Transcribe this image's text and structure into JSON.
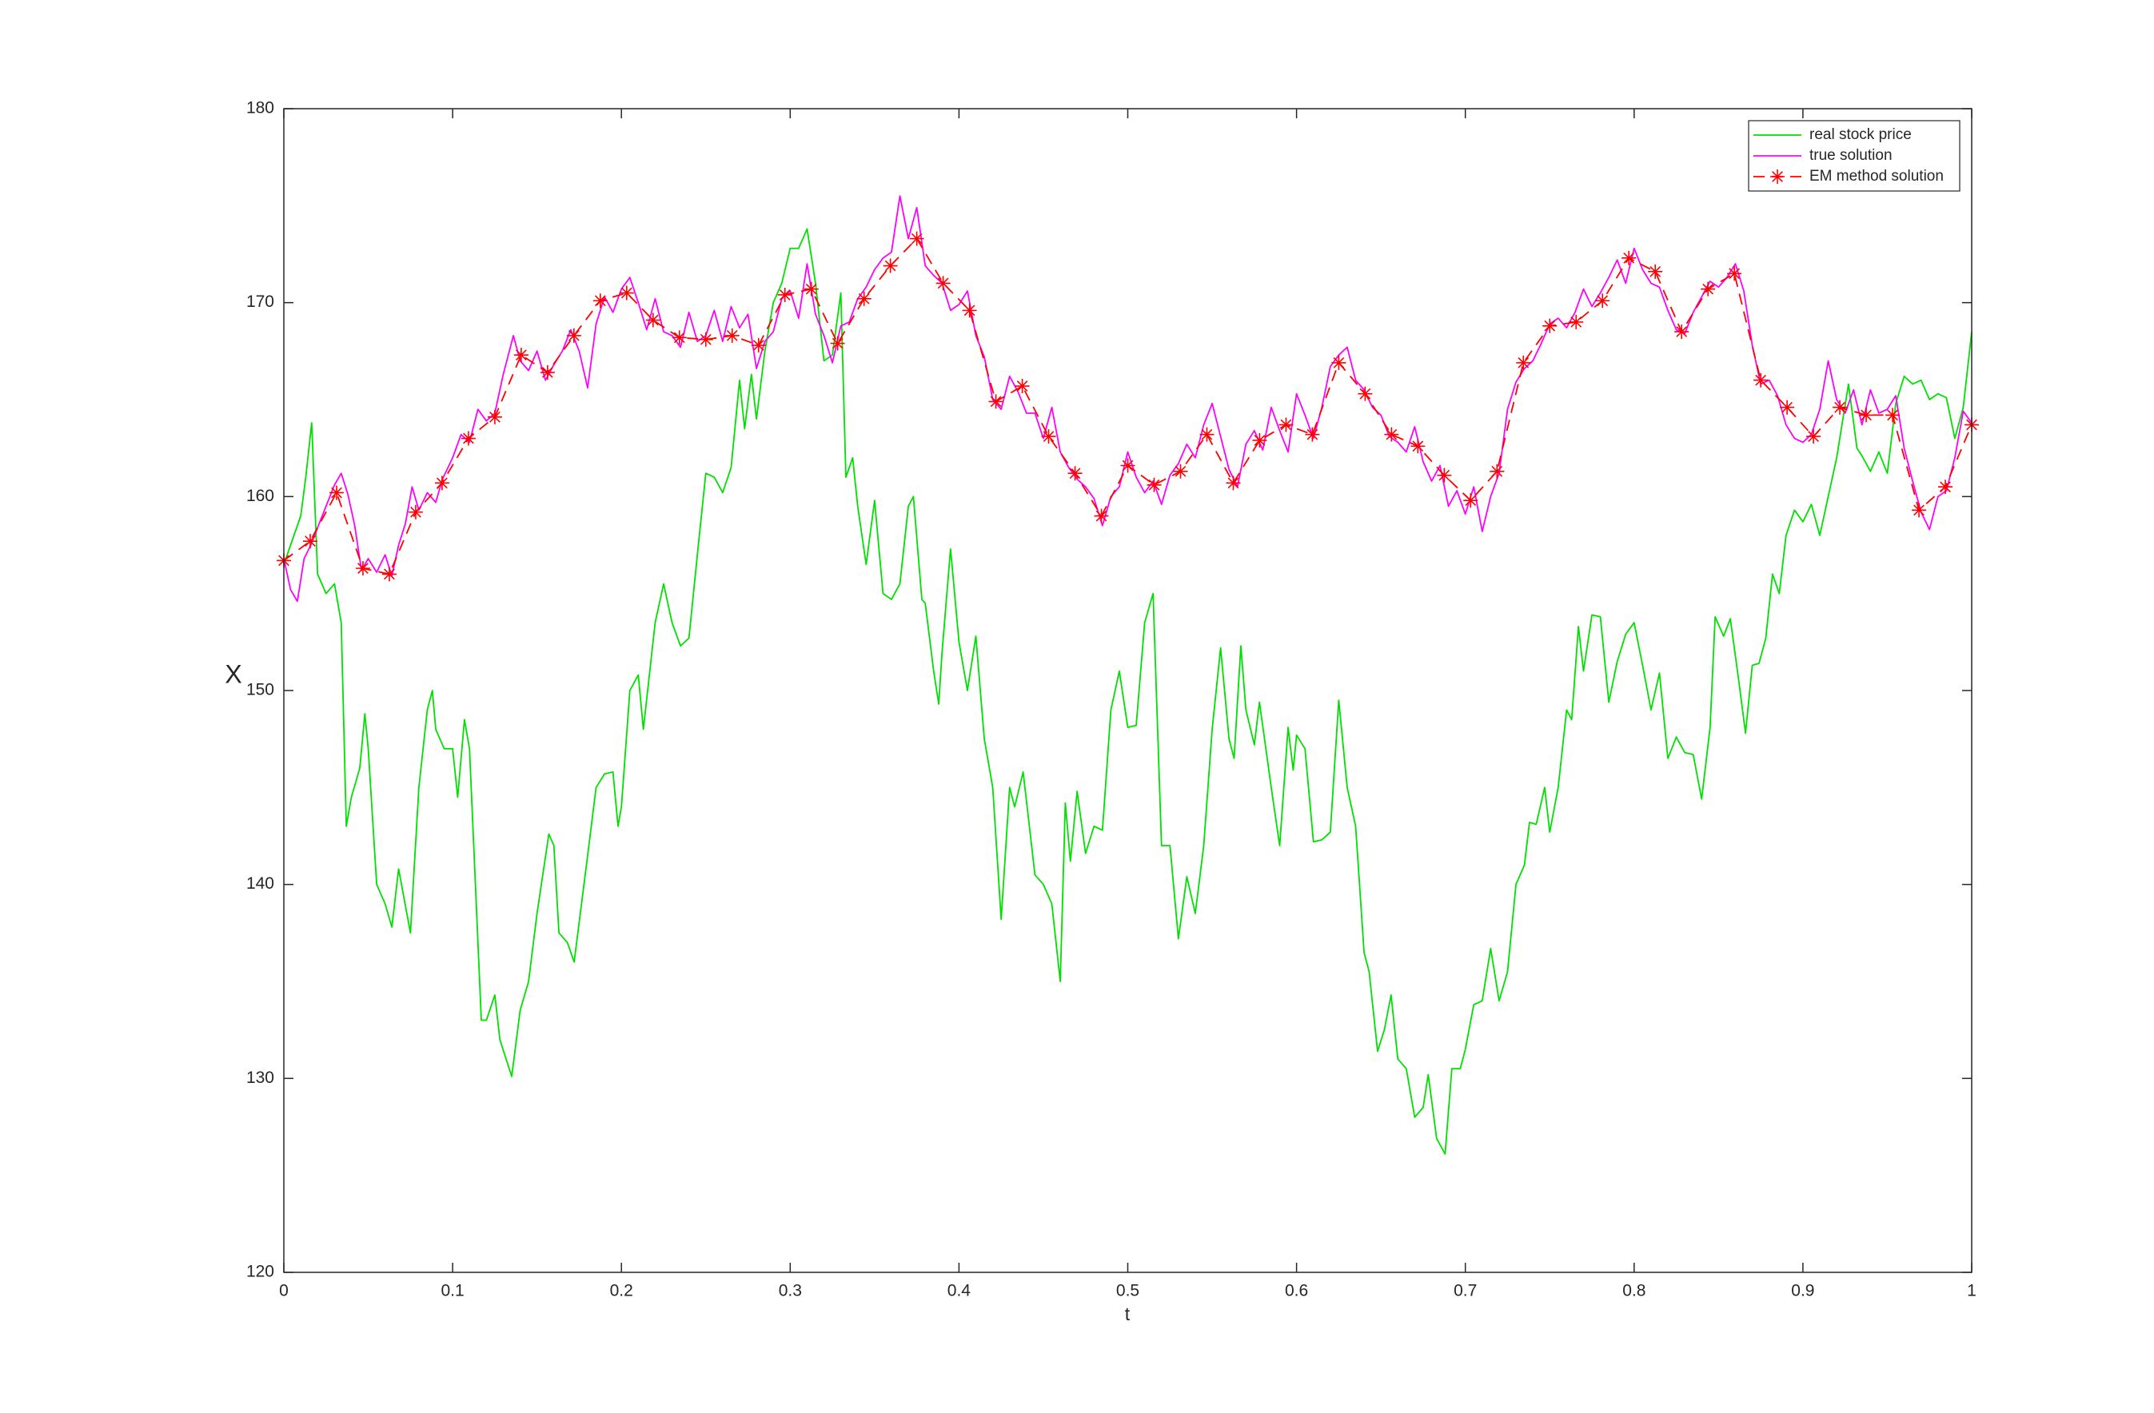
{
  "chart_data": {
    "type": "line",
    "xlabel": "t",
    "ylabel": "X",
    "xlim": [
      0,
      1
    ],
    "ylim": [
      120,
      180
    ],
    "xticks": [
      0,
      0.1,
      0.2,
      0.3,
      0.4,
      0.5,
      0.6,
      0.7,
      0.8,
      0.9,
      1
    ],
    "yticks": [
      120,
      130,
      140,
      150,
      160,
      170,
      180
    ],
    "legend": "northeast",
    "series": [
      {
        "name": "real stock price",
        "color": "#00e000",
        "linestyle": "solid",
        "x": [
          0,
          0.01,
          0.013,
          0.0165,
          0.02,
          0.025,
          0.03,
          0.034,
          0.037,
          0.04,
          0.045,
          0.048,
          0.05,
          0.055,
          0.06,
          0.064,
          0.068,
          0.075,
          0.08,
          0.085,
          0.088,
          0.09,
          0.095,
          0.1,
          0.103,
          0.107,
          0.11,
          0.117,
          0.12,
          0.125,
          0.128,
          0.135,
          0.14,
          0.145,
          0.15,
          0.157,
          0.16,
          0.163,
          0.168,
          0.172,
          0.18,
          0.185,
          0.19,
          0.195,
          0.198,
          0.2,
          0.205,
          0.21,
          0.213,
          0.22,
          0.225,
          0.23,
          0.235,
          0.24,
          0.245,
          0.25,
          0.255,
          0.26,
          0.265,
          0.27,
          0.273,
          0.277,
          0.28,
          0.285,
          0.29,
          0.295,
          0.3,
          0.305,
          0.31,
          0.315,
          0.32,
          0.325,
          0.33,
          0.333,
          0.337,
          0.34,
          0.345,
          0.35,
          0.355,
          0.36,
          0.365,
          0.37,
          0.373,
          0.378,
          0.38,
          0.385,
          0.388,
          0.39,
          0.395,
          0.4,
          0.405,
          0.41,
          0.415,
          0.42,
          0.425,
          0.43,
          0.433,
          0.438,
          0.445,
          0.45,
          0.455,
          0.46,
          0.463,
          0.466,
          0.47,
          0.475,
          0.48,
          0.485,
          0.49,
          0.495,
          0.5,
          0.505,
          0.51,
          0.515,
          0.52,
          0.525,
          0.53,
          0.535,
          0.54,
          0.545,
          0.55,
          0.555,
          0.56,
          0.563,
          0.567,
          0.57,
          0.575,
          0.578,
          0.585,
          0.59,
          0.595,
          0.598,
          0.6,
          0.605,
          0.61,
          0.615,
          0.62,
          0.625,
          0.63,
          0.635,
          0.64,
          0.643,
          0.648,
          0.652,
          0.656,
          0.66,
          0.665,
          0.67,
          0.675,
          0.678,
          0.683,
          0.688,
          0.692,
          0.697,
          0.7,
          0.705,
          0.71,
          0.715,
          0.72,
          0.725,
          0.73,
          0.735,
          0.738,
          0.742,
          0.747,
          0.75,
          0.755,
          0.76,
          0.763,
          0.767,
          0.77,
          0.775,
          0.78,
          0.785,
          0.79,
          0.795,
          0.8,
          0.805,
          0.81,
          0.815,
          0.82,
          0.825,
          0.83,
          0.835,
          0.84,
          0.845,
          0.848,
          0.853,
          0.857,
          0.862,
          0.866,
          0.87,
          0.874,
          0.878,
          0.882,
          0.886,
          0.89,
          0.895,
          0.9,
          0.905,
          0.91,
          0.915,
          0.92,
          0.927,
          0.932,
          0.935,
          0.94,
          0.945,
          0.95,
          0.955,
          0.96,
          0.965,
          0.97,
          0.975,
          0.98,
          0.985,
          0.99,
          0.995,
          1
        ],
        "values": [
          156.5,
          159,
          161,
          163.8,
          156,
          155,
          155.5,
          153.5,
          143,
          144.5,
          146,
          148.8,
          147,
          140,
          139,
          137.8,
          140.8,
          137.5,
          145,
          149,
          150,
          148,
          147,
          147,
          144.5,
          148.5,
          147,
          133,
          133,
          134.3,
          132,
          130.1,
          133.5,
          135,
          138.5,
          142.6,
          142,
          137.5,
          137,
          136,
          141.5,
          145,
          145.7,
          145.8,
          143,
          144,
          150,
          150.8,
          148,
          153.5,
          155.5,
          153.5,
          152.3,
          152.7,
          157,
          161.2,
          161,
          160.2,
          161.5,
          166,
          163.5,
          166.3,
          164,
          167.5,
          170,
          171,
          172.8,
          172.8,
          173.8,
          171,
          167,
          167.3,
          170.5,
          161,
          162,
          159.5,
          156.5,
          159.8,
          155,
          154.7,
          155.5,
          159.5,
          160,
          154.7,
          154.5,
          151,
          149.3,
          152,
          157.3,
          152.5,
          150,
          152.8,
          147.5,
          145,
          138.2,
          145,
          144,
          145.8,
          140.5,
          140,
          139,
          135,
          144.2,
          141.2,
          144.8,
          141.6,
          143,
          142.8,
          149,
          151,
          148.1,
          148.2,
          153.5,
          155,
          142,
          142,
          137.2,
          140.4,
          138.5,
          142,
          148,
          152.2,
          147.5,
          146.5,
          152.3,
          149,
          147.2,
          149.4,
          145,
          142,
          148.1,
          145.9,
          147.7,
          147,
          142.2,
          142.3,
          142.7,
          149.5,
          145,
          143,
          136.5,
          135.5,
          131.4,
          132.5,
          134.3,
          131,
          130.5,
          128,
          128.5,
          130.2,
          126.9,
          126.1,
          130.5,
          130.5,
          131.5,
          133.8,
          134,
          136.7,
          134,
          135.5,
          140,
          141,
          143.2,
          143.1,
          145,
          142.7,
          145,
          149,
          148.5,
          153.3,
          151,
          153.9,
          153.8,
          149.4,
          151.5,
          152.9,
          153.5,
          151.3,
          149,
          150.9,
          146.5,
          147.6,
          146.8,
          146.7,
          144.4,
          148.1,
          153.8,
          152.8,
          153.7,
          150.5,
          147.8,
          151.3,
          151.4,
          152.7,
          156,
          155,
          158,
          159.3,
          158.7,
          159.6,
          158,
          160,
          162,
          165.8,
          162.5,
          162.1,
          161.3,
          162.3,
          161.2,
          164.8,
          166.2,
          165.8,
          166,
          165,
          165.3,
          165.1,
          163,
          164.6,
          168.5
        ]
      },
      {
        "name": "true solution",
        "color": "#ff00ff",
        "linestyle": "solid",
        "x": [
          0,
          0.004,
          0.008,
          0.012,
          0.016,
          0.02,
          0.025,
          0.03,
          0.034,
          0.038,
          0.042,
          0.046,
          0.05,
          0.055,
          0.06,
          0.064,
          0.068,
          0.072,
          0.076,
          0.08,
          0.085,
          0.09,
          0.094,
          0.1,
          0.105,
          0.11,
          0.115,
          0.12,
          0.125,
          0.13,
          0.136,
          0.14,
          0.145,
          0.15,
          0.155,
          0.16,
          0.165,
          0.17,
          0.175,
          0.18,
          0.185,
          0.19,
          0.195,
          0.2,
          0.205,
          0.21,
          0.215,
          0.22,
          0.225,
          0.23,
          0.235,
          0.24,
          0.245,
          0.25,
          0.255,
          0.26,
          0.265,
          0.27,
          0.275,
          0.28,
          0.285,
          0.29,
          0.295,
          0.3,
          0.305,
          0.31,
          0.315,
          0.32,
          0.325,
          0.33,
          0.335,
          0.34,
          0.345,
          0.35,
          0.355,
          0.36,
          0.365,
          0.37,
          0.375,
          0.38,
          0.385,
          0.39,
          0.395,
          0.4,
          0.405,
          0.41,
          0.415,
          0.42,
          0.425,
          0.43,
          0.435,
          0.44,
          0.445,
          0.45,
          0.455,
          0.46,
          0.465,
          0.47,
          0.475,
          0.48,
          0.485,
          0.49,
          0.495,
          0.5,
          0.505,
          0.51,
          0.515,
          0.52,
          0.525,
          0.53,
          0.535,
          0.54,
          0.545,
          0.55,
          0.555,
          0.56,
          0.565,
          0.57,
          0.575,
          0.58,
          0.585,
          0.59,
          0.595,
          0.6,
          0.605,
          0.61,
          0.615,
          0.62,
          0.625,
          0.63,
          0.635,
          0.64,
          0.645,
          0.65,
          0.655,
          0.66,
          0.665,
          0.67,
          0.675,
          0.68,
          0.685,
          0.69,
          0.695,
          0.7,
          0.705,
          0.71,
          0.715,
          0.72,
          0.725,
          0.73,
          0.735,
          0.74,
          0.745,
          0.75,
          0.755,
          0.76,
          0.765,
          0.77,
          0.775,
          0.78,
          0.785,
          0.79,
          0.795,
          0.8,
          0.805,
          0.81,
          0.815,
          0.82,
          0.825,
          0.83,
          0.835,
          0.84,
          0.845,
          0.85,
          0.855,
          0.86,
          0.865,
          0.87,
          0.875,
          0.88,
          0.885,
          0.89,
          0.895,
          0.9,
          0.905,
          0.91,
          0.915,
          0.92,
          0.925,
          0.93,
          0.935,
          0.94,
          0.945,
          0.95,
          0.955,
          0.96,
          0.965,
          0.97,
          0.975,
          0.98,
          0.985,
          0.99,
          0.995,
          1
        ],
        "values": [
          156.8,
          155.2,
          154.6,
          156.8,
          157.5,
          158.4,
          159.5,
          160.6,
          161.2,
          160.1,
          158.5,
          156.2,
          156.8,
          156.1,
          157,
          155.9,
          157.5,
          158.6,
          160.5,
          159.3,
          160.2,
          159.7,
          160.9,
          162,
          163.2,
          162.8,
          164.5,
          163.9,
          164.3,
          166.3,
          168.3,
          167,
          166.5,
          167.5,
          166,
          166.8,
          167.5,
          168.6,
          167.5,
          165.6,
          168.9,
          170.3,
          169.5,
          170.7,
          171.3,
          170,
          168.6,
          170.2,
          168.5,
          168.3,
          167.7,
          169.5,
          168,
          168.3,
          169.6,
          168,
          169.8,
          168.7,
          169.4,
          166.6,
          168,
          168.5,
          170.2,
          170.6,
          169.2,
          172,
          169.4,
          168.3,
          166.9,
          168.8,
          169,
          170.2,
          170.8,
          171.7,
          172.3,
          172.6,
          175.5,
          173.3,
          174.9,
          171.9,
          171.4,
          171,
          169.6,
          169.9,
          170.6,
          168.3,
          167.2,
          165,
          164.5,
          166.2,
          165.4,
          164.3,
          164.3,
          163,
          164.6,
          162.3,
          161.5,
          160.9,
          160.5,
          159.9,
          158.5,
          160,
          160.5,
          162.3,
          161,
          160.2,
          160.8,
          159.6,
          161.1,
          161.7,
          162.7,
          162,
          163.7,
          164.8,
          163.1,
          161.4,
          160.5,
          162.7,
          163.4,
          162.4,
          164.6,
          163.4,
          162.3,
          165.3,
          164.2,
          163,
          164.6,
          166.7,
          167.3,
          167.7,
          166,
          165.5,
          164.6,
          164.2,
          163.1,
          162.8,
          162.3,
          163.6,
          161.8,
          160.8,
          161.6,
          159.5,
          160.3,
          159.1,
          160.5,
          158.2,
          160,
          161.2,
          164.5,
          165.9,
          166.6,
          167,
          167.9,
          168.9,
          169.2,
          168.7,
          169.5,
          170.7,
          169.8,
          170.5,
          171.3,
          172.2,
          171,
          172.8,
          171.7,
          171,
          170.8,
          169.6,
          168.6,
          168.4,
          169.5,
          170.3,
          171.1,
          170.8,
          171.3,
          172,
          170.6,
          167.8,
          165.8,
          166,
          165.2,
          163.7,
          163,
          162.8,
          163.2,
          164.5,
          167,
          165,
          164.3,
          165.5,
          163.7,
          165.5,
          164.3,
          164.5,
          165.2,
          162.5,
          160.8,
          159.2,
          158.3,
          160,
          160.3,
          162,
          164.4,
          163.8
        ]
      },
      {
        "name": "EM method solution",
        "color": "#ff0000",
        "linestyle": "dashed",
        "marker": "*",
        "x": [
          0,
          0.015625,
          0.03125,
          0.046875,
          0.0625,
          0.078125,
          0.09375,
          0.109375,
          0.125,
          0.140625,
          0.15625,
          0.171875,
          0.1875,
          0.203125,
          0.21875,
          0.234375,
          0.25,
          0.265625,
          0.28125,
          0.296875,
          0.3125,
          0.328125,
          0.34375,
          0.359375,
          0.375,
          0.390625,
          0.40625,
          0.421875,
          0.4375,
          0.453125,
          0.46875,
          0.484375,
          0.5,
          0.515625,
          0.53125,
          0.546875,
          0.5625,
          0.578125,
          0.59375,
          0.609375,
          0.625,
          0.640625,
          0.65625,
          0.671875,
          0.6875,
          0.703125,
          0.71875,
          0.734375,
          0.75,
          0.765625,
          0.78125,
          0.796875,
          0.8125,
          0.828125,
          0.84375,
          0.859375,
          0.875,
          0.890625,
          0.90625,
          0.921875,
          0.9375,
          0.953125,
          0.96875,
          0.984375,
          1
        ],
        "values": [
          156.7,
          157.7,
          160.2,
          156.3,
          156,
          159.2,
          160.7,
          163,
          164.1,
          167.3,
          166.4,
          168.3,
          170.1,
          170.5,
          169.1,
          168.2,
          168.1,
          168.3,
          167.8,
          170.4,
          170.7,
          167.9,
          170.2,
          171.9,
          173.3,
          171,
          169.6,
          164.9,
          165.7,
          163.1,
          161.2,
          159,
          161.6,
          160.6,
          161.3,
          163.2,
          160.7,
          162.9,
          163.7,
          163.2,
          166.9,
          165.3,
          163.2,
          162.6,
          161.1,
          159.8,
          161.3,
          166.9,
          168.8,
          169,
          170.1,
          172.3,
          171.6,
          168.5,
          170.7,
          171.5,
          166,
          164.6,
          163.1,
          164.6,
          164.2,
          164.2,
          159.3,
          160.5,
          163.7
        ]
      }
    ]
  }
}
